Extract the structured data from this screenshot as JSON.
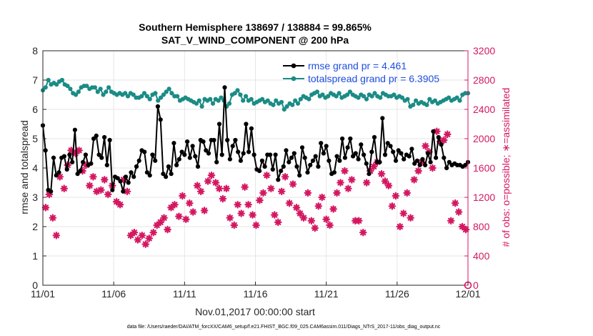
{
  "chart_data": {
    "type": "line",
    "title": "Southern Hemisphere 138697 / 138884 = 99.865%",
    "subtitle": "SAT_V_WIND_COMPONENT @ 200 hPa",
    "xlabel": "Nov.01,2017 00:00:00 start",
    "ylabel": "rmse and totalspread",
    "y2label": "# of obs: o=possible; ∗=assimilated",
    "footer": "data file: /Users/raeder/DAI/ATM_forcXX/CAM6_setup/f.e21.FHIST_BGC.f09_025.CAM6assim.011/Diags_NTrS_2017-11/obs_diag_output.nc",
    "x_range": [
      0,
      30
    ],
    "x_ticks": [
      0,
      5,
      10,
      15,
      20,
      25,
      30
    ],
    "x_tick_labels": [
      "11/01",
      "11/06",
      "11/11",
      "11/16",
      "11/21",
      "11/26",
      "12/01"
    ],
    "ylim": [
      0,
      8
    ],
    "y_ticks": [
      "0",
      "1",
      "2",
      "3",
      "4",
      "5",
      "6",
      "7",
      "8"
    ],
    "y2lim": [
      0,
      3200
    ],
    "y2_ticks": [
      "0",
      "400",
      "800",
      "1200",
      "1600",
      "2000",
      "2400",
      "2800",
      "3200"
    ],
    "grid": true,
    "legend_position": "top-right",
    "colors": {
      "rmse": "#000000",
      "spread": "#1a8c85",
      "obs": "#d41761",
      "legend_text": "#1f4fe0",
      "y2axis": "#d41761"
    },
    "series": [
      {
        "name": "rmse grand pr = 4.461",
        "axis": "left",
        "values": [
          5.45,
          4.6,
          3.25,
          3.2,
          4.35,
          3.75,
          3.85,
          4.35,
          4.4,
          3.95,
          4.45,
          4.2,
          5.3,
          3.8,
          3.9,
          4.2,
          4.45,
          4.1,
          4.15,
          5.0,
          5.1,
          4.45,
          4.35,
          5.05,
          4.1,
          4.95,
          3.25,
          3.7,
          3.65,
          3.55,
          3.2,
          3.7,
          3.5,
          3.85,
          3.7,
          4.05,
          4.25,
          4.6,
          4.55,
          3.85,
          3.75,
          4.45,
          4.25,
          6.1,
          5.65,
          3.8,
          3.7,
          4.05,
          3.8,
          4.85,
          4.1,
          4.3,
          4.55,
          4.45,
          4.9,
          4.35,
          4.75,
          4.4,
          4.05,
          4.95,
          4.9,
          4.6,
          4.5,
          4.95,
          4.95,
          4.2,
          5.5,
          4.45,
          6.75,
          4.95,
          4.3,
          4.75,
          4.95,
          4.55,
          4.25,
          4.5,
          5.5,
          4.55,
          5.35,
          4.45,
          3.95,
          3.9,
          4.25,
          4.05,
          4.45,
          4.45,
          3.95,
          4.45,
          3.6,
          3.9,
          4.05,
          4.6,
          4.2,
          4.35,
          4.5,
          4.05,
          3.75,
          4.7,
          4.35,
          3.85,
          4.1,
          4.25,
          4.4,
          4.05,
          4.85,
          4.5,
          4.75,
          4.25,
          3.8,
          3.85,
          4.4,
          4.25,
          5.0,
          4.35,
          4.7,
          5.0,
          4.4,
          4.5,
          4.3,
          4.8,
          4.45,
          4.15,
          3.8,
          4.55,
          5.05,
          4.2,
          4.2,
          5.7,
          4.45,
          4.85,
          4.75,
          4.55,
          4.25,
          4.6,
          4.5,
          4.3,
          4.45,
          4.4,
          4.65,
          4.15,
          4.25,
          4.1,
          4.3,
          4.1,
          4.5,
          4.2,
          5.25,
          4.35,
          5.05,
          4.8,
          4.35,
          4.0,
          4.2,
          4.1,
          4.15,
          4.1,
          4.1,
          4.05,
          4.1,
          4.2
        ]
      },
      {
        "name": "totalspread grand pr = 6.3905",
        "axis": "left",
        "values": [
          6.65,
          6.75,
          7.0,
          6.85,
          6.9,
          6.85,
          6.95,
          7.0,
          6.85,
          6.8,
          6.7,
          6.55,
          6.5,
          6.6,
          6.75,
          6.8,
          6.8,
          6.7,
          6.75,
          6.75,
          6.6,
          6.7,
          6.5,
          6.6,
          6.75,
          6.6,
          6.55,
          6.5,
          6.55,
          6.5,
          6.55,
          6.45,
          6.55,
          6.5,
          6.4,
          6.4,
          6.45,
          6.55,
          6.45,
          6.35,
          6.5,
          6.55,
          6.3,
          6.4,
          6.5,
          6.6,
          6.7,
          6.55,
          6.45,
          6.45,
          6.3,
          6.35,
          6.4,
          6.35,
          6.3,
          6.25,
          6.2,
          6.3,
          6.1,
          6.35,
          6.3,
          6.35,
          6.2,
          6.35,
          6.3,
          6.4,
          6.3,
          6.1,
          6.2,
          6.5,
          6.55,
          6.65,
          6.5,
          6.3,
          6.45,
          6.3,
          6.35,
          6.2,
          6.25,
          6.3,
          6.35,
          6.25,
          6.3,
          6.2,
          6.15,
          6.3,
          6.2,
          6.25,
          6.0,
          6.1,
          6.2,
          6.15,
          6.3,
          6.2,
          6.35,
          6.45,
          6.4,
          6.35,
          6.5,
          6.55,
          6.6,
          6.45,
          6.5,
          6.4,
          6.45,
          6.55,
          6.5,
          6.45,
          6.55,
          6.4,
          6.45,
          6.5,
          6.6,
          6.5,
          6.45,
          6.4,
          6.5,
          6.45,
          6.35,
          6.5,
          6.45,
          6.55,
          6.45,
          6.4,
          6.55,
          6.5,
          6.45,
          6.45,
          6.5,
          6.4,
          6.45,
          6.4,
          6.3,
          6.35,
          6.1,
          6.15,
          6.3,
          6.2,
          6.25,
          6.2,
          6.15,
          6.35,
          6.25,
          6.3,
          6.2,
          6.25,
          6.3,
          6.35,
          6.4,
          6.3,
          6.35,
          6.4,
          6.3,
          6.5,
          6.55,
          6.55
        ]
      },
      {
        "name": "assimilated obs",
        "axis": "right",
        "marker": "asterisk",
        "x": [
          0.2,
          0.45,
          0.7,
          0.95,
          1.2,
          1.5,
          1.75,
          2.0,
          2.3,
          2.55,
          2.8,
          3.05,
          3.3,
          3.55,
          3.8,
          4.1,
          4.35,
          4.6,
          4.9,
          5.2,
          5.45,
          5.7,
          5.95,
          6.2,
          6.45,
          6.7,
          7.0,
          7.25,
          7.5,
          7.8,
          8.05,
          8.3,
          8.55,
          8.8,
          9.05,
          9.3,
          9.6,
          9.85,
          10.1,
          10.35,
          10.6,
          10.9,
          11.15,
          11.4,
          11.65,
          11.9,
          12.2,
          12.45,
          12.7,
          12.95,
          13.2,
          13.5,
          13.75,
          14.0,
          14.25,
          14.5,
          14.8,
          15.05,
          15.3,
          15.55,
          15.8,
          16.1,
          16.35,
          16.6,
          16.85,
          17.1,
          17.4,
          17.65,
          17.9,
          18.15,
          18.4,
          18.7,
          18.95,
          19.2,
          19.45,
          19.7,
          20.0,
          20.25,
          20.5,
          20.75,
          21.0,
          21.3,
          21.55,
          21.8,
          22.05,
          22.3,
          22.6,
          22.85,
          23.1,
          23.35,
          23.6,
          23.9,
          24.15,
          24.4,
          24.65,
          24.9,
          25.2,
          25.45,
          25.7,
          25.95,
          26.2,
          26.5,
          26.75,
          27.0,
          27.25,
          27.5,
          27.8,
          28.05,
          28.3,
          28.55,
          28.8,
          29.1,
          29.35,
          29.6,
          29.85
        ],
        "values": [
          1060,
          1240,
          920,
          680,
          1480,
          1320,
          1640,
          1840,
          1800,
          1840,
          1560,
          1640,
          1360,
          1480,
          1280,
          1300,
          1440,
          1240,
          1360,
          1140,
          1100,
          1440,
          1280,
          680,
          720,
          620,
          680,
          560,
          640,
          720,
          820,
          860,
          920,
          760,
          1060,
          1100,
          940,
          1220,
          900,
          1120,
          1000,
          1360,
          1280,
          1020,
          1420,
          1500,
          1400,
          1320,
          1180,
          1320,
          920,
          820,
          1100,
          980,
          1340,
          1100,
          960,
          820,
          1160,
          1260,
          1500,
          1320,
          960,
          860,
          1280,
          1480,
          1120,
          1380,
          1060,
          980,
          920,
          1260,
          880,
          780,
          1080,
          1200,
          900,
          820,
          1040,
          1260,
          1400,
          1560,
          1320,
          1440,
          880,
          880,
          720,
          1400,
          1560,
          1620,
          1680,
          1520,
          1420,
          1360,
          1080,
          1220,
          800,
          980,
          1260,
          920,
          1440,
          1560,
          1680,
          1900,
          1820,
          1600,
          2100,
          1960,
          1980,
          2060,
          880,
          1120,
          1000,
          800,
          760
        ]
      }
    ],
    "obs_possible": {
      "name": "possible obs",
      "marker": "circle",
      "x": [
        30
      ],
      "values": [
        0
      ]
    }
  }
}
